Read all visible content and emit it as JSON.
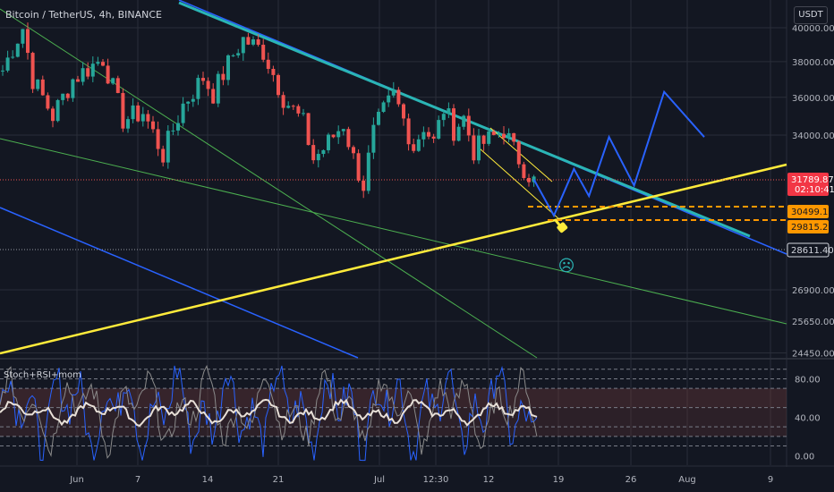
{
  "header": {
    "symbol_title": "Bitcoin / TetherUS, 4h, BINANCE",
    "indicator_title": "Stoch+RSI+mom",
    "currency_label": "USDT"
  },
  "price_tags": {
    "last": {
      "price": "31789.87",
      "countdown": "02:10:41",
      "bg": "#f23645",
      "fg": "#ffffff"
    },
    "level_upper": {
      "price": "30499.18",
      "bg": "#ff9800",
      "fg": "#131722"
    },
    "level_lower": {
      "price": "29815.20",
      "bg": "#ff9800",
      "fg": "#131722"
    },
    "dotted_level": {
      "price": "28611.40",
      "bg": "#131722",
      "fg": "#d1d4dc"
    }
  },
  "annotations": {
    "frown_icon": "sad-face-icon",
    "pointer_icon": "pointing-hand-icon"
  },
  "colors": {
    "background": "#131722",
    "grid": "#2a2e39",
    "candle_up": "#26a69a",
    "candle_down": "#ef5350",
    "trendline_main": "#2bb5b5",
    "support_yellow": "#ffeb3b",
    "channel_green": "#4caf50",
    "channel_blue": "#2962ff",
    "projection_blue": "#2962ff",
    "fib_orange": "#ff9800",
    "osc_main": "#e8e0d8",
    "osc_stoch": "#8a8a8a",
    "osc_mom": "#2962ff"
  },
  "chart_data": [
    {
      "type": "candlestick",
      "title": "Bitcoin / TetherUS, 4h, BINANCE",
      "y_axis": {
        "ticks": [
          "40000.00",
          "38000.00",
          "36000.00",
          "34000.00",
          "26900.00",
          "25650.00",
          "24450.00"
        ],
        "tick_values": [
          40000,
          38000,
          36000,
          34000,
          26900,
          25650,
          24450
        ],
        "scale": "log"
      },
      "x_axis": {
        "ticks": [
          "Jun",
          "7",
          "14",
          "21",
          "Jul",
          "12:30",
          "12",
          "19",
          "26",
          "Aug",
          "9"
        ]
      },
      "grid": true,
      "close_anchors": [
        {
          "t": 0,
          "v": 37500
        },
        {
          "t": 1,
          "v": 38800
        },
        {
          "t": 2,
          "v": 40000
        },
        {
          "t": 3,
          "v": 37000
        },
        {
          "t": 5,
          "v": 35000
        },
        {
          "t": 7,
          "v": 37000
        },
        {
          "t": 10,
          "v": 38200
        },
        {
          "t": 12,
          "v": 34800
        },
        {
          "t": 14,
          "v": 35200
        },
        {
          "t": 16,
          "v": 33000
        },
        {
          "t": 18,
          "v": 35600
        },
        {
          "t": 20,
          "v": 37100
        },
        {
          "t": 21,
          "v": 36200
        },
        {
          "t": 23,
          "v": 38400
        },
        {
          "t": 24,
          "v": 39300
        },
        {
          "t": 26,
          "v": 38600
        },
        {
          "t": 28,
          "v": 36000
        },
        {
          "t": 30,
          "v": 34600
        },
        {
          "t": 31,
          "v": 32800
        },
        {
          "t": 32,
          "v": 33300
        },
        {
          "t": 34,
          "v": 34600
        },
        {
          "t": 35,
          "v": 32800
        },
        {
          "t": 36,
          "v": 31500
        },
        {
          "t": 37,
          "v": 34100
        },
        {
          "t": 38,
          "v": 35200
        },
        {
          "t": 39,
          "v": 36100
        },
        {
          "t": 40,
          "v": 34800
        },
        {
          "t": 41,
          "v": 33400
        },
        {
          "t": 42,
          "v": 34500
        },
        {
          "t": 43,
          "v": 33600
        },
        {
          "t": 44,
          "v": 35400
        },
        {
          "t": 45,
          "v": 34300
        },
        {
          "t": 46,
          "v": 34900
        },
        {
          "t": 47,
          "v": 33200
        },
        {
          "t": 48,
          "v": 33600
        },
        {
          "t": 49,
          "v": 33900
        },
        {
          "t": 50,
          "v": 34300
        },
        {
          "t": 51,
          "v": 33200
        },
        {
          "t": 52,
          "v": 32400
        },
        {
          "t": 53,
          "v": 31700
        }
      ],
      "projection_path": [
        {
          "t": 53,
          "v": 31789.87
        },
        {
          "t": 55,
          "v": 30100
        },
        {
          "t": 57,
          "v": 32300
        },
        {
          "t": 58.5,
          "v": 31000
        },
        {
          "t": 60.5,
          "v": 33900
        },
        {
          "t": 63,
          "v": 31500
        },
        {
          "t": 66,
          "v": 36300
        },
        {
          "t": 70,
          "v": 33900
        }
      ]
    },
    {
      "type": "line",
      "title": "Stoch+RSI+mom",
      "y_axis": {
        "ticks": [
          "80.00",
          "40.00",
          "0.00"
        ],
        "tick_values": [
          80,
          40,
          0
        ],
        "range": [
          -10,
          100
        ]
      },
      "bands": [
        [
          20,
          50
        ],
        [
          50,
          70
        ]
      ],
      "dashed_levels": [
        90,
        80,
        70,
        50,
        30,
        20,
        10
      ]
    }
  ]
}
